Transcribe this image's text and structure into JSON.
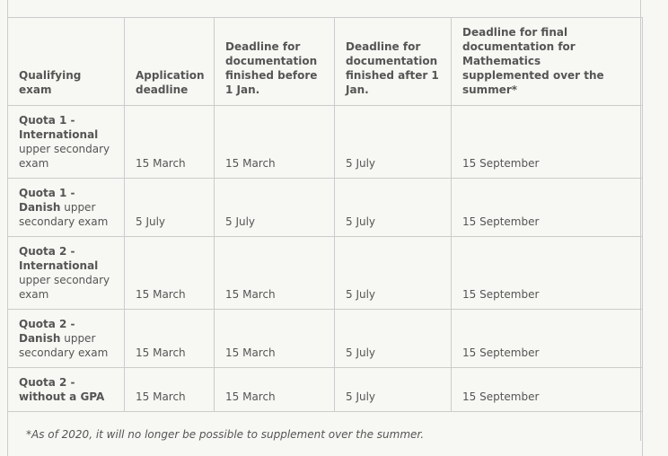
{
  "table": {
    "headers": [
      "Qualifying exam",
      "Application deadline",
      "Deadline for documentation finished before 1 Jan.",
      "Deadline for documentation finished after 1 Jan.",
      "Deadline for final documentation for Mathematics supplemented over the summer*"
    ],
    "rows": [
      {
        "exam_bold": "Quota 1 - International",
        "exam_rest": " upper secondary exam",
        "cells": [
          "15 March",
          "15 March",
          "5 July",
          "15 September"
        ]
      },
      {
        "exam_bold": "Quota 1 - Danish",
        "exam_rest": " upper secondary exam",
        "cells": [
          "5 July",
          "5 July",
          "5 July",
          "15 September"
        ]
      },
      {
        "exam_bold": "Quota 2 - International",
        "exam_rest": " upper secondary exam",
        "cells": [
          "15 March",
          "15 March",
          "5 July",
          "15 September"
        ]
      },
      {
        "exam_bold": "Quota 2 - Danish",
        "exam_rest": " upper secondary exam",
        "cells": [
          "15 March",
          "15 March",
          "5 July",
          "15 September"
        ]
      },
      {
        "exam_bold": "Quota 2 - without a GPA",
        "exam_rest": "",
        "cells": [
          "15 March",
          "15 March",
          "5 July",
          "15 September"
        ]
      }
    ],
    "footnote": "*As of 2020, it will no longer be possible to supplement over the summer."
  }
}
